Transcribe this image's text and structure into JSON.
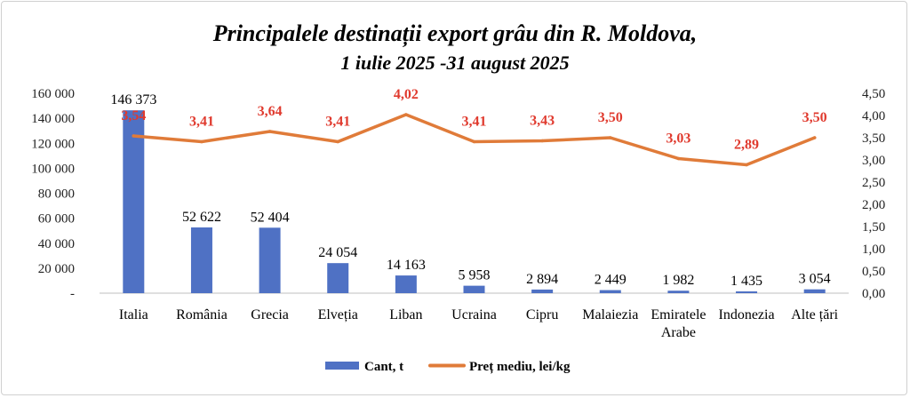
{
  "chart_data": {
    "type": "bar",
    "title": "Principalele destinații export grâu din R. Moldova,",
    "subtitle": "1 iulie 2025 -31 august 2025",
    "categories": [
      "Italia",
      "România",
      "Grecia",
      "Elveția",
      "Liban",
      "Ucraina",
      "Cipru",
      "Malaiezia",
      "Emiratele Arabe",
      "Indonezia",
      "Alte țări"
    ],
    "category_lines": [
      [
        "Italia"
      ],
      [
        "România"
      ],
      [
        "Grecia"
      ],
      [
        "Elveția"
      ],
      [
        "Liban"
      ],
      [
        "Ucraina"
      ],
      [
        "Cipru"
      ],
      [
        "Malaiezia"
      ],
      [
        "Emiratele",
        "Arabe"
      ],
      [
        "Indonezia"
      ],
      [
        "Alte țări"
      ]
    ],
    "series": [
      {
        "name": "Cant, t",
        "type": "bar",
        "axis": "left",
        "color": "#4f71c4",
        "values": [
          146373,
          52622,
          52404,
          24054,
          14163,
          5958,
          2894,
          2449,
          1982,
          1435,
          3054
        ],
        "labels": [
          "146 373",
          "52 622",
          "52 404",
          "24 054",
          "14 163",
          "5 958",
          "2 894",
          "2 449",
          "1 982",
          "1 435",
          "3 054"
        ]
      },
      {
        "name": "Preț mediu, lei/kg",
        "type": "line",
        "axis": "right",
        "color": "#e07b39",
        "label_color": "#e03a2e",
        "values": [
          3.54,
          3.41,
          3.64,
          3.41,
          4.02,
          3.41,
          3.43,
          3.5,
          3.03,
          2.89,
          3.5
        ],
        "labels": [
          "3,54",
          "3,41",
          "3,64",
          "3,41",
          "4,02",
          "3,41",
          "3,43",
          "3,50",
          "3,03",
          "2,89",
          "3,50"
        ]
      }
    ],
    "left_axis": {
      "ylim": [
        0,
        160000
      ],
      "ticks": [
        0,
        20000,
        40000,
        60000,
        80000,
        100000,
        120000,
        140000,
        160000
      ],
      "tick_labels": [
        "-",
        "20 000",
        "40 000",
        "60 000",
        "80 000",
        "100 000",
        "120 000",
        "140 000",
        "160 000"
      ]
    },
    "right_axis": {
      "ylim": [
        0,
        4.5
      ],
      "ticks": [
        0,
        0.5,
        1,
        1.5,
        2,
        2.5,
        3,
        3.5,
        4,
        4.5
      ],
      "tick_labels": [
        "0,00",
        "0,50",
        "1,00",
        "1,50",
        "2,00",
        "2,50",
        "3,00",
        "3,50",
        "4,00",
        "4,50"
      ]
    },
    "grid": false,
    "legend_position": "bottom"
  }
}
